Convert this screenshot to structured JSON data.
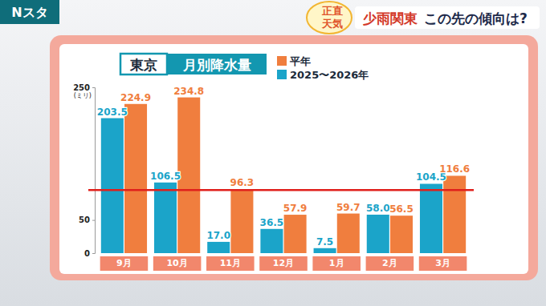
{
  "header": {
    "logo": "Nスタ",
    "badge": [
      "正直",
      "天気"
    ],
    "headline": "少雨関東",
    "subheadline": "この先の傾向は?"
  },
  "chart_data": {
    "type": "bar",
    "title": "月別降水量",
    "subtitle": "東京",
    "y_label": "(ミリ)",
    "categories": [
      "9月",
      "10月",
      "11月",
      "12月",
      "1月",
      "2月",
      "3月"
    ],
    "series": [
      {
        "name": "2025〜2026年",
        "color": "#1ba4c9",
        "values": [
          203.5,
          106.5,
          17.0,
          36.5,
          7.5,
          58.0,
          104.5
        ],
        "value_labels": [
          "203.5",
          "106.5",
          "17.0",
          "36.5",
          "7.5",
          "58.0",
          "104.5"
        ]
      },
      {
        "name": "平年",
        "color": "#f07e3e",
        "values": [
          224.9,
          234.8,
          96.3,
          57.9,
          59.7,
          56.5,
          116.6
        ],
        "value_labels": [
          "224.9",
          "234.8",
          "96.3",
          "57.9",
          "59.7",
          "56.5",
          "116.6"
        ]
      }
    ],
    "ylim": [
      0,
      250
    ],
    "yticks": [
      0,
      50,
      250
    ],
    "reference_line": 95,
    "grid": false,
    "data_labels": true,
    "legend": "top"
  }
}
